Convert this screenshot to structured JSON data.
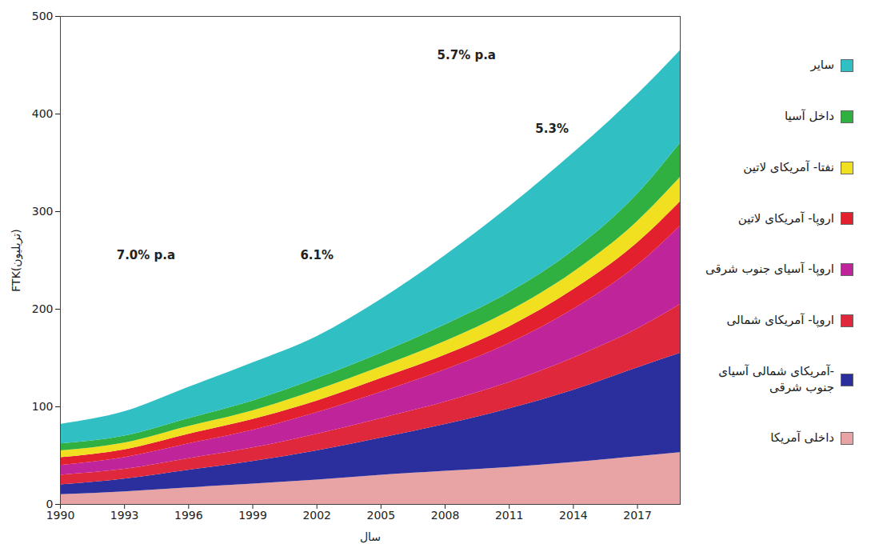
{
  "chart_data": {
    "type": "area",
    "stacked": true,
    "grid": false,
    "legend": "right",
    "x_label": "سال",
    "y_label": "FTK(تریلیون)",
    "x": [
      1990,
      1993,
      1996,
      1999,
      2002,
      2005,
      2008,
      2011,
      2014,
      2017,
      2019
    ],
    "xlim": [
      1990,
      2019
    ],
    "xticks": [
      1990,
      1993,
      1996,
      1999,
      2002,
      2005,
      2008,
      2011,
      2014,
      2017
    ],
    "ylim": [
      0,
      500
    ],
    "yticks": [
      0,
      100,
      200,
      300,
      400,
      500
    ],
    "series": [
      {
        "name": "داخلی آمریکا",
        "color": "#e8a4a4",
        "values": [
          10,
          13,
          17,
          21,
          25,
          30,
          34,
          38,
          43,
          49,
          53
        ]
      },
      {
        "name": "-آمریکای شمالی آسیای جنوب شرقی",
        "color": "#2b2f9e",
        "values": [
          10,
          13,
          18,
          23,
          30,
          38,
          48,
          60,
          74,
          91,
          102
        ]
      },
      {
        "name": "اروپا- آمریکای شمالی",
        "color": "#e0283c",
        "values": [
          10,
          10,
          12,
          14,
          17,
          20,
          23,
          27,
          33,
          40,
          50
        ]
      },
      {
        "name": "اروپا- آسیای جنوب شرقی",
        "color": "#c0249a",
        "values": [
          10,
          12,
          15,
          18,
          22,
          27,
          33,
          40,
          50,
          65,
          80
        ]
      },
      {
        "name": "اروپا- آمریکای لاتین",
        "color": "#e3202e",
        "values": [
          8,
          8,
          10,
          11,
          12,
          14,
          15,
          17,
          20,
          23,
          25
        ]
      },
      {
        "name": "نفتا- آمریکای لاتین",
        "color": "#f0e020",
        "values": [
          7,
          7,
          8,
          9,
          11,
          12,
          14,
          16,
          18,
          22,
          25
        ]
      },
      {
        "name": "داخل آسیا",
        "color": "#30b040",
        "values": [
          7,
          7,
          8,
          10,
          12,
          14,
          17,
          19,
          22,
          28,
          35
        ]
      },
      {
        "name": "سایر",
        "color": "#30c0c4",
        "values": [
          20,
          25,
          32,
          39,
          43,
          55,
          71,
          88,
          100,
          102,
          95
        ]
      }
    ],
    "annotations": [
      {
        "text": "5.7% p.a",
        "x": 2009,
        "y": 460
      },
      {
        "text": "5.3%",
        "x": 2013,
        "y": 385
      },
      {
        "text": "7.0% p.a",
        "x": 1994,
        "y": 255
      },
      {
        "text": "6.1%",
        "x": 2002,
        "y": 255
      }
    ]
  }
}
